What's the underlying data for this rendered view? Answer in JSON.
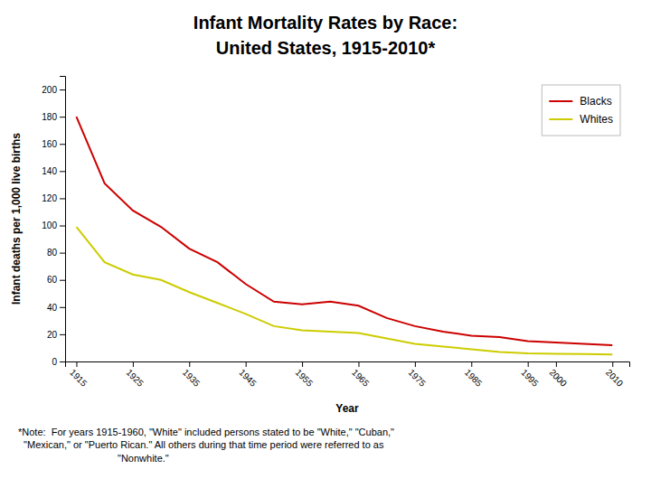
{
  "chart_data": {
    "type": "line",
    "title": "Infant Mortality Rates by Race:",
    "subtitle": "United States, 1915-2010*",
    "x_label": "Year",
    "y_label": "Infant deaths per 1,000 live births",
    "annotations": [
      "*Note:  For years 1915-1960, \"White\" included persons stated to be \"White,\" \"Cuban,\"\n  \"Mexican,\" or \"Puerto Rican.\" All others during that time period were referred to as\n                                    \"Nonwhite.\""
    ],
    "x": [
      1915,
      1920,
      1925,
      1930,
      1935,
      1940,
      1945,
      1950,
      1955,
      1960,
      1965,
      1970,
      1975,
      1980,
      1985,
      1990,
      1995,
      2000,
      2005,
      2010
    ],
    "series": [
      {
        "name": "Blacks",
        "color": "#cc0000",
        "values": [
          180,
          131,
          111,
          99,
          83,
          73,
          57,
          44,
          42,
          44,
          41,
          32,
          26,
          22,
          19,
          18,
          15,
          14,
          13,
          12
        ]
      },
      {
        "name": "Whites",
        "color": "#cccc00",
        "values": [
          99,
          73,
          64,
          60,
          51,
          43,
          35,
          26,
          23,
          22,
          21,
          17,
          13,
          11,
          9,
          7,
          6,
          5.7,
          5.5,
          5.2
        ]
      }
    ],
    "xlim": [
      1913,
      2013
    ],
    "xticks": [
      1915,
      1925,
      1935,
      1945,
      1955,
      1965,
      1975,
      1985,
      1995,
      2000,
      2010
    ],
    "ylim": [
      0,
      210
    ],
    "yticks": [
      0,
      20,
      40,
      60,
      80,
      100,
      120,
      140,
      160,
      180,
      200
    ],
    "grid": false,
    "legend": "upper-right"
  }
}
